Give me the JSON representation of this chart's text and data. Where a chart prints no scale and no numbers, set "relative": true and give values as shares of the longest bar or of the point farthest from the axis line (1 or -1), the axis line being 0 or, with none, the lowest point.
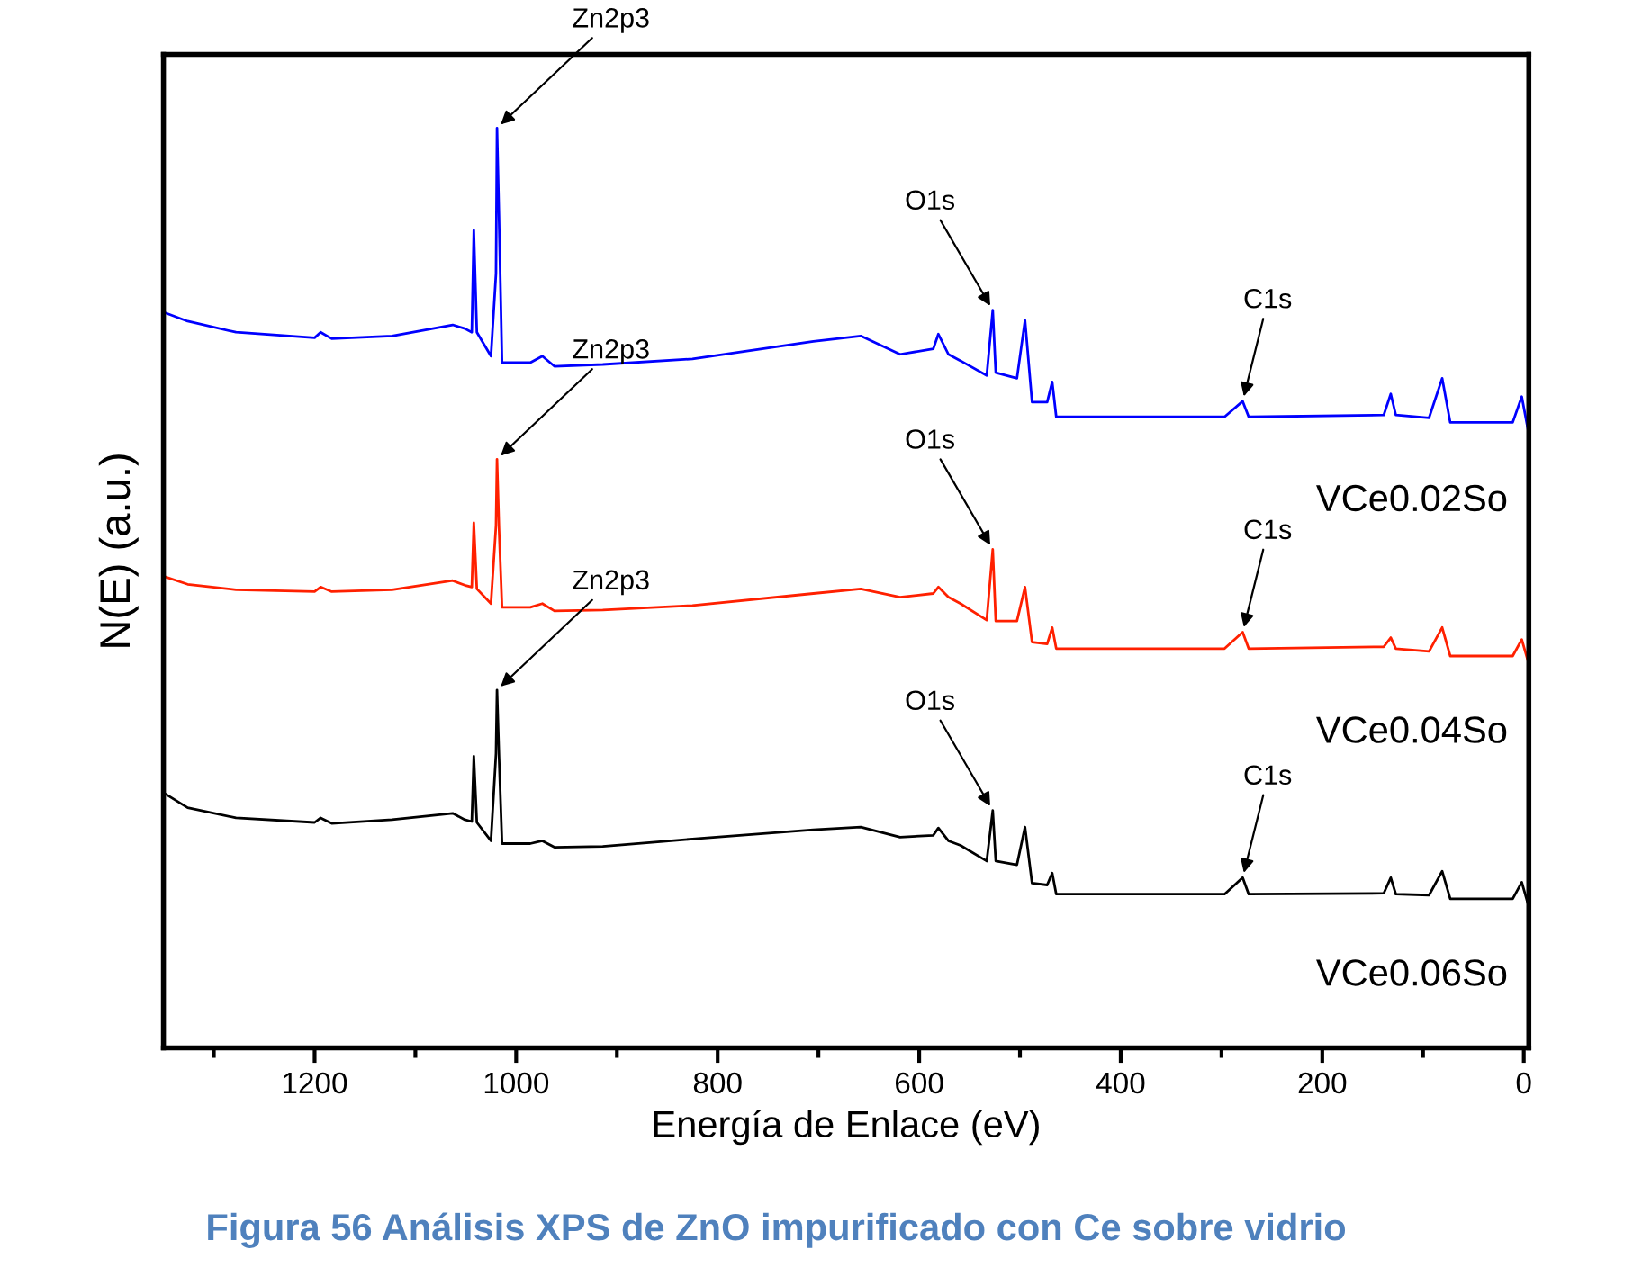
{
  "chart_data": {
    "type": "line",
    "relative": true,
    "xlabel": "Energía de Enlace (eV)",
    "ylabel": "N(E) (a.u.)",
    "xlim": [
      1350,
      -5
    ],
    "xticks": [
      1200,
      1000,
      800,
      600,
      400,
      200,
      0
    ],
    "grid": false,
    "legend": false,
    "marker": "none",
    "line_style": "solid",
    "x": [
      1348,
      1326,
      1278,
      1200,
      1194,
      1183,
      1123,
      1063,
      1051,
      1044,
      1042,
      1039,
      1025,
      1020,
      1019,
      1017,
      1014,
      986,
      974,
      962,
      914,
      825,
      705,
      658,
      619,
      586,
      581,
      571,
      559,
      533,
      527,
      524,
      503,
      495,
      488,
      473,
      468,
      464,
      297,
      279,
      273,
      139,
      132,
      127,
      94,
      81,
      73,
      11,
      2,
      -4
    ],
    "series": [
      {
        "name": "VCe0.02So",
        "color": "#0000ff",
        "values": [
          0.799,
          0.79,
          0.778,
          0.772,
          0.778,
          0.771,
          0.774,
          0.786,
          0.782,
          0.778,
          0.889,
          0.778,
          0.752,
          0.842,
          1.0,
          0.904,
          0.745,
          0.745,
          0.752,
          0.741,
          0.743,
          0.749,
          0.768,
          0.774,
          0.754,
          0.76,
          0.776,
          0.754,
          0.747,
          0.731,
          0.802,
          0.734,
          0.728,
          0.791,
          0.702,
          0.702,
          0.724,
          0.686,
          0.686,
          0.703,
          0.686,
          0.688,
          0.711,
          0.688,
          0.685,
          0.728,
          0.68,
          0.68,
          0.708,
          0.673
        ]
      },
      {
        "name": "VCe0.04So",
        "color": "#ff2000",
        "values": [
          0.512,
          0.504,
          0.498,
          0.496,
          0.501,
          0.496,
          0.498,
          0.508,
          0.503,
          0.501,
          0.571,
          0.499,
          0.483,
          0.568,
          0.64,
          0.565,
          0.479,
          0.479,
          0.483,
          0.475,
          0.476,
          0.481,
          0.494,
          0.499,
          0.49,
          0.494,
          0.501,
          0.49,
          0.483,
          0.465,
          0.542,
          0.464,
          0.464,
          0.501,
          0.441,
          0.439,
          0.457,
          0.434,
          0.434,
          0.452,
          0.434,
          0.436,
          0.446,
          0.434,
          0.431,
          0.457,
          0.426,
          0.426,
          0.444,
          0.421
        ]
      },
      {
        "name": "VCe0.06So",
        "color": "#000000",
        "values": [
          0.276,
          0.261,
          0.25,
          0.245,
          0.25,
          0.244,
          0.248,
          0.255,
          0.248,
          0.246,
          0.317,
          0.245,
          0.225,
          0.32,
          0.389,
          0.317,
          0.222,
          0.222,
          0.225,
          0.218,
          0.219,
          0.227,
          0.237,
          0.24,
          0.229,
          0.231,
          0.239,
          0.225,
          0.22,
          0.203,
          0.258,
          0.203,
          0.199,
          0.24,
          0.179,
          0.177,
          0.19,
          0.167,
          0.167,
          0.185,
          0.167,
          0.168,
          0.185,
          0.167,
          0.166,
          0.192,
          0.162,
          0.162,
          0.18,
          0.157
        ]
      }
    ],
    "annotations": [
      {
        "text": "Zn2p3",
        "x": 1019,
        "y": 1.0
      },
      {
        "text": "O1s",
        "x": 527,
        "y": 0.802
      },
      {
        "text": "C1s",
        "x": 279,
        "y": 0.703
      },
      {
        "text": "Zn2p3",
        "x": 1019,
        "y": 0.64
      },
      {
        "text": "O1s",
        "x": 527,
        "y": 0.542
      },
      {
        "text": "C1s",
        "x": 279,
        "y": 0.452
      },
      {
        "text": "Zn2p3",
        "x": 1019,
        "y": 0.389
      },
      {
        "text": "O1s",
        "x": 527,
        "y": 0.258
      },
      {
        "text": "C1s",
        "x": 279,
        "y": 0.185
      },
      "Figura 56 Análisis XPS de ZnO impurificado con Ce sobre vidrio"
    ]
  }
}
